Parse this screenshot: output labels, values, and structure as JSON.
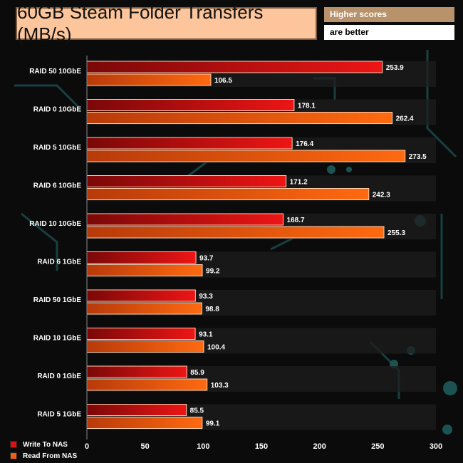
{
  "header": {
    "title": "60GB Steam Folder Transfers (MB/s)",
    "note_line1": "Higher scores",
    "note_line2": "are better"
  },
  "chart_data": {
    "type": "bar",
    "orientation": "horizontal",
    "title": "60GB Steam Folder Transfers (MB/s)",
    "categories": [
      "RAID 50 10GbE",
      "RAID 0 10GbE",
      "RAID 5 10GbE",
      "RAID 6 10GbE",
      "RAID 10 10GbE",
      "RAID 6 1GbE",
      "RAID 50 1GbE",
      "RAID 10 1GbE",
      "RAID 0 1GbE",
      "RAID 5 1GbE"
    ],
    "series": [
      {
        "name": "Write To NAS",
        "color": "#e01010",
        "values": [
          253.9,
          178.1,
          176.4,
          171.2,
          168.7,
          93.7,
          93.3,
          93.1,
          85.9,
          85.5
        ]
      },
      {
        "name": "Read From NAS",
        "color": "#f06010",
        "values": [
          106.5,
          262.4,
          273.5,
          242.3,
          255.3,
          99.2,
          98.8,
          100.4,
          103.3,
          99.1
        ]
      }
    ],
    "xlim": [
      0,
      300
    ],
    "xticks": [
      0,
      50,
      100,
      150,
      200,
      250,
      300
    ],
    "legend_position": "bottom-left",
    "grid": false
  }
}
